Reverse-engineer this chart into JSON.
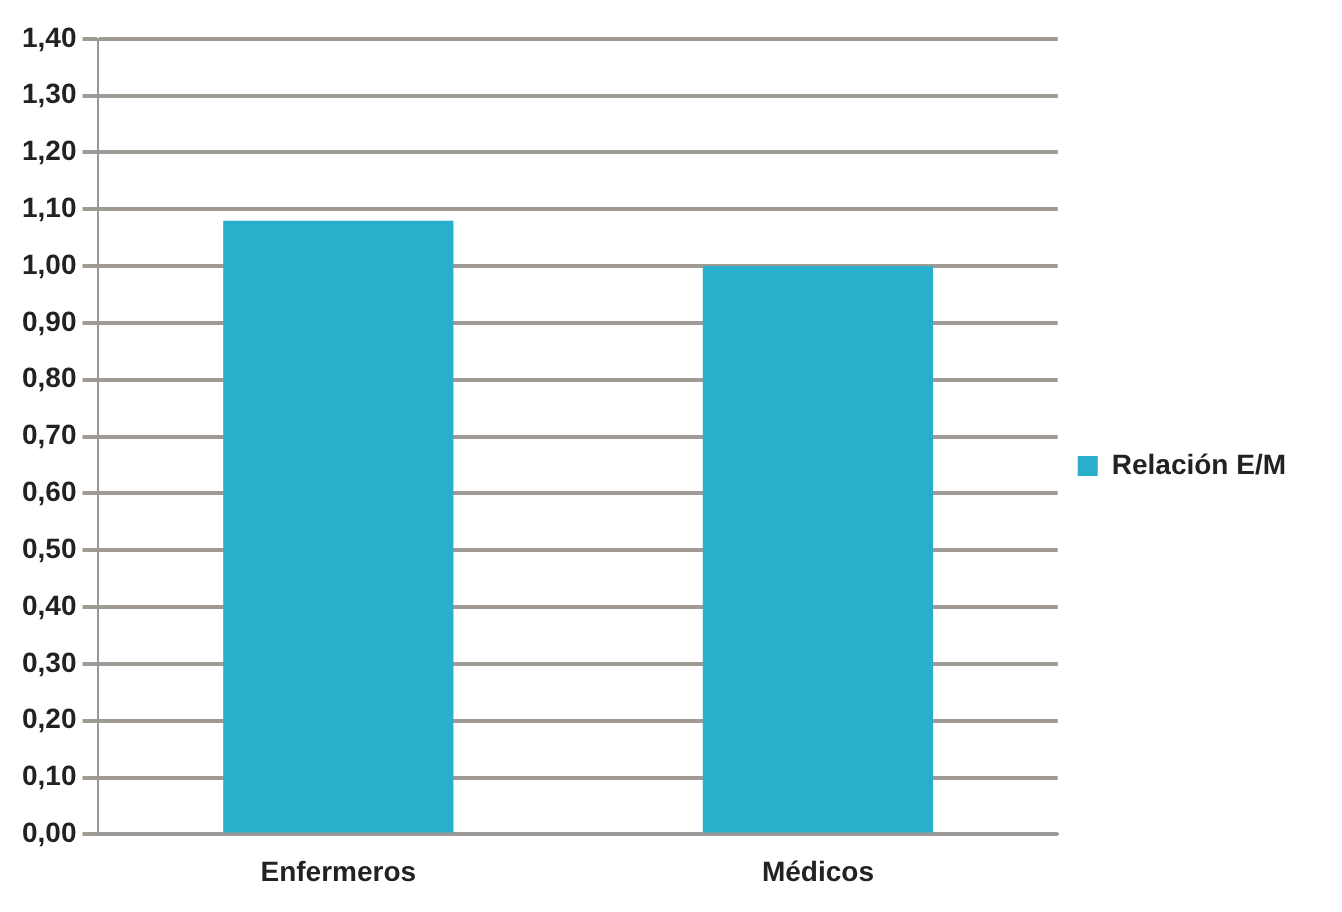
{
  "chart_data": {
    "type": "bar",
    "categories": [
      "Enfermeros",
      "Médicos"
    ],
    "series": [
      {
        "name": "Relación E/M",
        "color": "#29aecb",
        "values": [
          1.08,
          1.0
        ]
      }
    ],
    "ylim": [
      0,
      1.4
    ],
    "yticks": [
      {
        "value": 0,
        "label": "0,00"
      },
      {
        "value": 0.1,
        "label": "0,10"
      },
      {
        "value": 0.2,
        "label": "0,20"
      },
      {
        "value": 0.3,
        "label": "0,30"
      },
      {
        "value": 0.4,
        "label": "0,40"
      },
      {
        "value": 0.5,
        "label": "0,50"
      },
      {
        "value": 0.6,
        "label": "0,60"
      },
      {
        "value": 0.7,
        "label": "0,70"
      },
      {
        "value": 0.8,
        "label": "0,80"
      },
      {
        "value": 0.9,
        "label": "0,90"
      },
      {
        "value": 1.0,
        "label": "1,00"
      },
      {
        "value": 1.1,
        "label": "1,10"
      },
      {
        "value": 1.2,
        "label": "1,20"
      },
      {
        "value": 1.3,
        "label": "1,30"
      },
      {
        "value": 1.4,
        "label": "1,40"
      }
    ],
    "grid": "y",
    "legend": "right"
  }
}
